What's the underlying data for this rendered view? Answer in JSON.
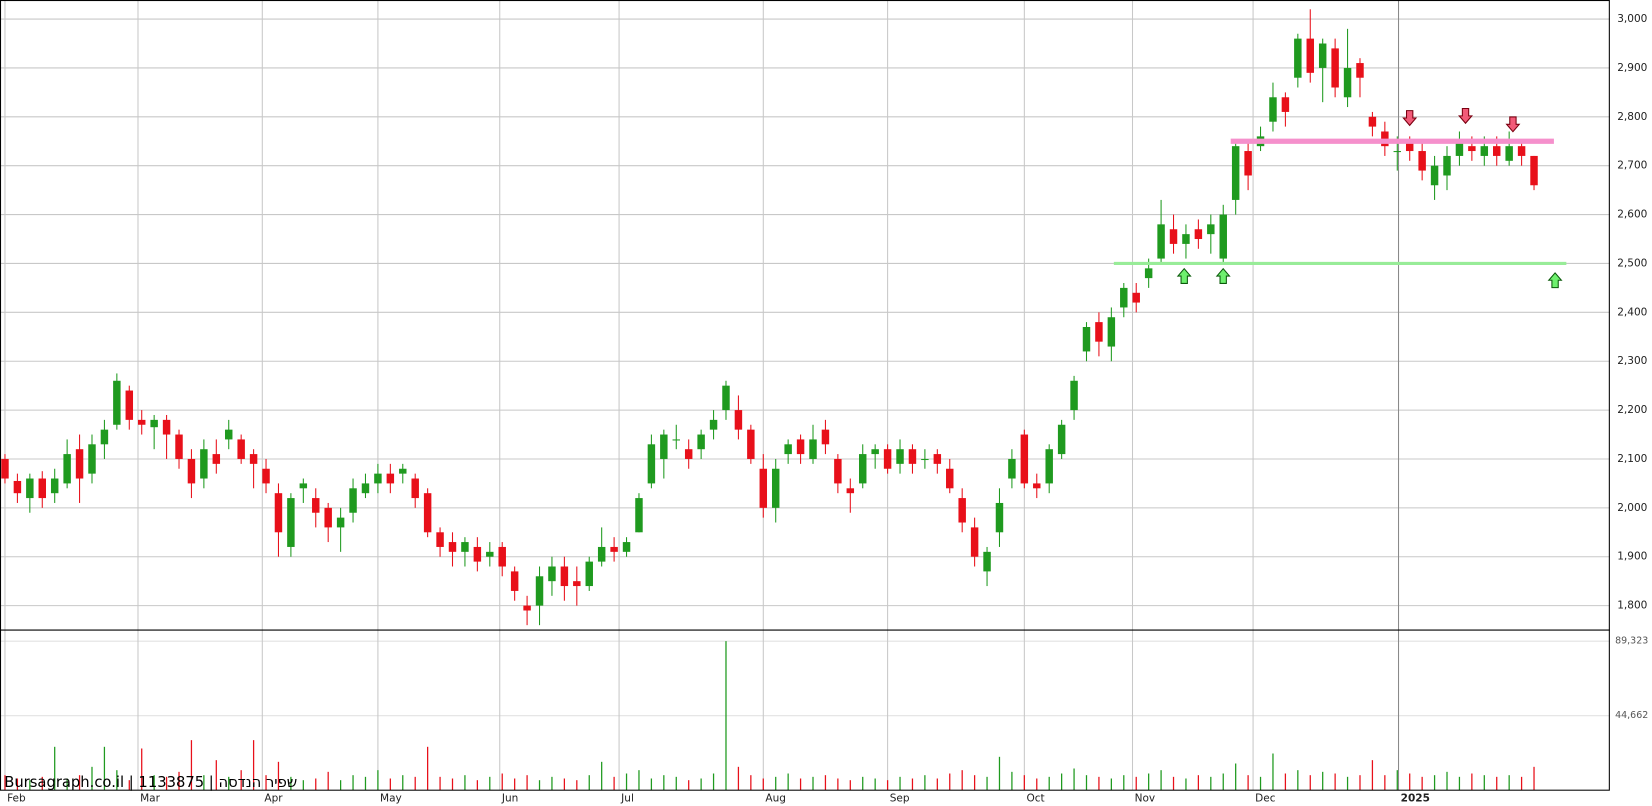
{
  "chart_data": {
    "type": "candlestick",
    "watermark": "Bursagraph.co.il | 1133875 | שפיר הנדסה",
    "up_color": "#1f9a1f",
    "down_color": "#e8101a",
    "xlim": [
      -0.4,
      129.1
    ],
    "xticks": [
      {
        "value": 0,
        "label": "Feb"
      },
      {
        "value": 10.7,
        "label": "Mar"
      },
      {
        "value": 20.7,
        "label": "Apr"
      },
      {
        "value": 30,
        "label": "May"
      },
      {
        "value": 39.8,
        "label": "Jun"
      },
      {
        "value": 49.4,
        "label": "Jul"
      },
      {
        "value": 61,
        "label": "Aug"
      },
      {
        "value": 71,
        "label": "Sep"
      },
      {
        "value": 82,
        "label": "Oct"
      },
      {
        "value": 90.7,
        "label": "Nov"
      },
      {
        "value": 100.4,
        "label": "Dec"
      },
      {
        "value": 112.1,
        "label": "2025"
      }
    ],
    "ylim": [
      1750,
      3039
    ],
    "yticks": [
      {
        "value": 1800,
        "label": "1,800"
      },
      {
        "value": 1900,
        "label": "1,900"
      },
      {
        "value": 2000,
        "label": "2,000"
      },
      {
        "value": 2100,
        "label": "2,100"
      },
      {
        "value": 2200,
        "label": "2,200"
      },
      {
        "value": 2300,
        "label": "2,300"
      },
      {
        "value": 2400,
        "label": "2,400"
      },
      {
        "value": 2500,
        "label": "2,500"
      },
      {
        "value": 2600,
        "label": "2,600"
      },
      {
        "value": 2700,
        "label": "2,700"
      },
      {
        "value": 2800,
        "label": "2,800"
      },
      {
        "value": 2900,
        "label": "2,900"
      },
      {
        "value": 3000,
        "label": "3,000"
      }
    ],
    "grid": true,
    "open": [
      2100,
      2055,
      2020,
      2060,
      2030,
      2050,
      2120,
      2070,
      2130,
      2170,
      2240,
      2180,
      2165,
      2180,
      2150,
      2100,
      2060,
      2110,
      2140,
      2140,
      2110,
      2080,
      2030,
      1920,
      2040,
      2020,
      2000,
      1960,
      1990,
      2030,
      2050,
      2070,
      2070,
      2060,
      2030,
      1950,
      1930,
      1910,
      1920,
      1900,
      1920,
      1870,
      1800,
      1800,
      1850,
      1880,
      1850,
      1840,
      1890,
      1920,
      1910,
      1950,
      2050,
      2100,
      2140,
      2120,
      2120,
      2160,
      2200,
      2200,
      2160,
      2080,
      2000,
      2110,
      2140,
      2100,
      2160,
      2100,
      2040,
      2050,
      2110,
      2120,
      2090,
      2120,
      2100,
      2110,
      2080,
      2020,
      1960,
      1870,
      1950,
      2060,
      2150,
      2050,
      2050,
      2110,
      2200,
      2320,
      2380,
      2330,
      2410,
      2440,
      2470,
      2510,
      2570,
      2540,
      2570,
      2560,
      2510,
      2630,
      2730,
      2740,
      2790,
      2840,
      2880,
      2960,
      2900,
      2940,
      2840,
      2910,
      2800,
      2770,
      2730,
      2750,
      2730,
      2660,
      2680,
      2720,
      2740,
      2720,
      2740,
      2710,
      2740,
      2720
    ],
    "high": [
      2110,
      2070,
      2070,
      2075,
      2080,
      2140,
      2150,
      2150,
      2180,
      2275,
      2250,
      2200,
      2190,
      2190,
      2160,
      2120,
      2140,
      2140,
      2180,
      2150,
      2120,
      2100,
      2050,
      2030,
      2060,
      2040,
      2010,
      2000,
      2060,
      2070,
      2090,
      2090,
      2090,
      2070,
      2040,
      1960,
      1950,
      1940,
      1940,
      1930,
      1930,
      1880,
      1820,
      1880,
      1900,
      1900,
      1880,
      1900,
      1960,
      1940,
      1940,
      2030,
      2150,
      2160,
      2170,
      2140,
      2160,
      2200,
      2260,
      2230,
      2170,
      2110,
      2100,
      2140,
      2150,
      2170,
      2180,
      2110,
      2060,
      2130,
      2130,
      2130,
      2140,
      2130,
      2120,
      2120,
      2100,
      2040,
      1980,
      1920,
      2040,
      2120,
      2160,
      2070,
      2130,
      2180,
      2270,
      2380,
      2400,
      2410,
      2460,
      2460,
      2510,
      2630,
      2600,
      2580,
      2590,
      2600,
      2620,
      2750,
      2750,
      2780,
      2870,
      2850,
      2970,
      3020,
      2960,
      2960,
      2980,
      2920,
      2810,
      2790,
      2760,
      2760,
      2750,
      2720,
      2740,
      2770,
      2760,
      2760,
      2760,
      2770,
      2750,
      2720
    ],
    "low": [
      2050,
      2010,
      1990,
      2000,
      2010,
      2040,
      2010,
      2050,
      2100,
      2160,
      2160,
      2150,
      2120,
      2100,
      2080,
      2020,
      2040,
      2070,
      2120,
      2090,
      2040,
      2030,
      1900,
      1900,
      2010,
      1960,
      1930,
      1910,
      1970,
      2020,
      2030,
      2030,
      2050,
      2000,
      1940,
      1900,
      1880,
      1880,
      1870,
      1880,
      1860,
      1810,
      1760,
      1760,
      1820,
      1810,
      1800,
      1830,
      1880,
      1890,
      1900,
      1950,
      2040,
      2060,
      2120,
      2080,
      2100,
      2140,
      2180,
      2140,
      2090,
      1980,
      1970,
      2090,
      2090,
      2090,
      2110,
      2030,
      1990,
      2040,
      2080,
      2070,
      2070,
      2070,
      2080,
      2070,
      2030,
      1950,
      1880,
      1840,
      1920,
      2040,
      2040,
      2020,
      2030,
      2100,
      2180,
      2300,
      2310,
      2300,
      2390,
      2400,
      2450,
      2500,
      2520,
      2510,
      2530,
      2520,
      2500,
      2600,
      2650,
      2730,
      2770,
      2780,
      2860,
      2870,
      2830,
      2840,
      2820,
      2840,
      2760,
      2720,
      2690,
      2710,
      2670,
      2630,
      2650,
      2700,
      2710,
      2700,
      2700,
      2700,
      2700,
      2650
    ],
    "close": [
      2060,
      2030,
      2060,
      2020,
      2060,
      2110,
      2060,
      2130,
      2160,
      2260,
      2180,
      2170,
      2180,
      2150,
      2100,
      2050,
      2120,
      2090,
      2160,
      2100,
      2090,
      2050,
      1950,
      2020,
      2050,
      1990,
      1960,
      1980,
      2040,
      2050,
      2070,
      2050,
      2080,
      2020,
      1950,
      1920,
      1910,
      1930,
      1890,
      1910,
      1880,
      1830,
      1790,
      1860,
      1880,
      1840,
      1840,
      1890,
      1920,
      1910,
      1930,
      2020,
      2130,
      2150,
      2140,
      2100,
      2150,
      2180,
      2250,
      2160,
      2100,
      2000,
      2080,
      2130,
      2110,
      2140,
      2130,
      2050,
      2030,
      2110,
      2120,
      2080,
      2120,
      2090,
      2100,
      2090,
      2040,
      1970,
      1900,
      1910,
      2010,
      2100,
      2050,
      2040,
      2120,
      2170,
      2260,
      2370,
      2340,
      2390,
      2450,
      2420,
      2490,
      2580,
      2540,
      2560,
      2550,
      2580,
      2600,
      2740,
      2680,
      2760,
      2840,
      2810,
      2960,
      2890,
      2950,
      2860,
      2900,
      2880,
      2780,
      2740,
      2730,
      2730,
      2690,
      2700,
      2720,
      2750,
      2730,
      2740,
      2720,
      2740,
      2720,
      2660
    ],
    "levels": [
      {
        "value": 2750,
        "from": 98.6,
        "to": 124.6,
        "color": "#f590cc"
      },
      {
        "value": 2500,
        "from": 89.2,
        "to": 125.6,
        "color": "#98ec98"
      }
    ],
    "volume": {
      "ylim": [
        0,
        96000
      ],
      "yticks": [
        {
          "value": 44662,
          "label": "44,662"
        },
        {
          "value": 89323,
          "label": "89,323"
        }
      ],
      "values": [
        9000,
        7000,
        6000,
        8000,
        26000,
        7000,
        9000,
        14000,
        26000,
        12000,
        6000,
        25000,
        9000,
        8000,
        11000,
        30000,
        9000,
        18000,
        8000,
        12000,
        30000,
        9000,
        17000,
        8000,
        6000,
        7000,
        11000,
        6000,
        9000,
        8000,
        12000,
        7000,
        9000,
        8000,
        26000,
        8000,
        7000,
        9000,
        6000,
        8000,
        10000,
        7000,
        9000,
        6000,
        8000,
        7000,
        6000,
        9000,
        17000,
        8000,
        10000,
        12000,
        7000,
        9000,
        8000,
        6000,
        7000,
        10000,
        89323,
        14000,
        9000,
        7000,
        8000,
        10000,
        7000,
        8000,
        9000,
        7000,
        6000,
        8000,
        7000,
        6000,
        8000,
        7000,
        9000,
        7000,
        10000,
        12000,
        9000,
        8000,
        20000,
        11000,
        9000,
        7000,
        8000,
        10000,
        13000,
        9000,
        8000,
        7000,
        9000,
        8000,
        10000,
        12000,
        8000,
        7000,
        9000,
        8000,
        10000,
        16000,
        9000,
        8000,
        22000,
        10000,
        12000,
        9000,
        11000,
        10000,
        8000,
        9000,
        18000,
        9000,
        12000,
        10000,
        8000,
        9000,
        11000,
        8000,
        10000,
        9000,
        8000,
        9000,
        8000,
        14000
      ]
    }
  }
}
